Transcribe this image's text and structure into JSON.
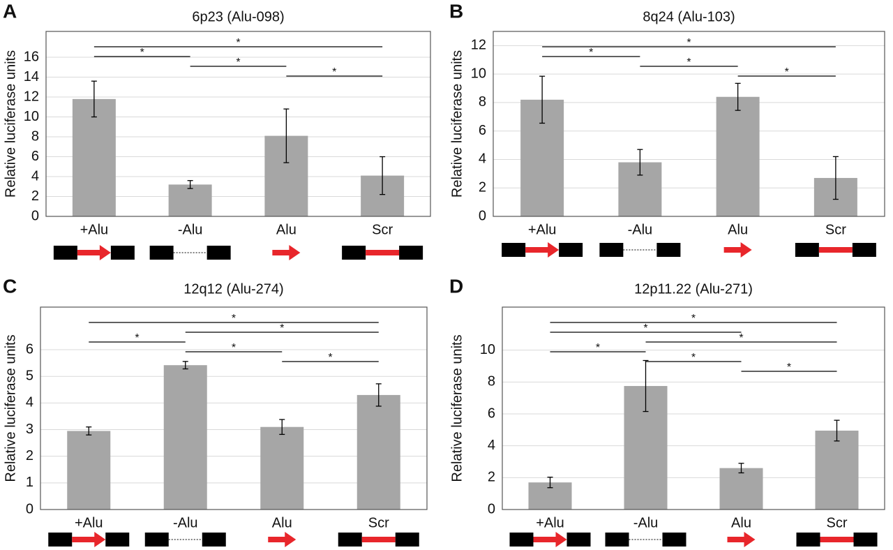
{
  "chart_data": [
    {
      "type": "bar",
      "panel": "A",
      "title": "6p23 (Alu-098)",
      "ylabel": "Relative luciferase units",
      "categories": [
        "+Alu",
        "-Alu",
        "Alu",
        "Scr"
      ],
      "values": [
        11.8,
        3.2,
        8.1,
        4.1
      ],
      "errors": [
        1.8,
        0.4,
        2.7,
        1.9
      ],
      "color": "#a6a6a6",
      "ylim": [
        0,
        18.6
      ],
      "yticks": [
        0,
        2,
        4,
        6,
        8,
        10,
        12,
        14,
        16
      ],
      "grid": true,
      "comparisons": [
        {
          "pair": [
            "+Alu",
            "Scr"
          ],
          "label": "*"
        },
        {
          "pair": [
            "+Alu",
            "-Alu"
          ],
          "label": "*"
        },
        {
          "pair": [
            "-Alu",
            "Alu"
          ],
          "label": "*"
        },
        {
          "pair": [
            "Alu",
            "Scr"
          ],
          "label": "*"
        }
      ]
    },
    {
      "type": "bar",
      "panel": "B",
      "title": "8q24 (Alu-103)",
      "ylabel": "Relative luciferase units",
      "categories": [
        "+Alu",
        "-Alu",
        "Alu",
        "Scr"
      ],
      "values": [
        8.2,
        3.8,
        8.4,
        2.7
      ],
      "errors": [
        1.65,
        0.9,
        0.95,
        1.5
      ],
      "color": "#a6a6a6",
      "ylim": [
        0,
        13
      ],
      "yticks": [
        0,
        2,
        4,
        6,
        8,
        10,
        12
      ],
      "grid": true,
      "comparisons": [
        {
          "pair": [
            "+Alu",
            "Scr"
          ],
          "label": "*"
        },
        {
          "pair": [
            "+Alu",
            "-Alu"
          ],
          "label": "*"
        },
        {
          "pair": [
            "-Alu",
            "Alu"
          ],
          "label": "*"
        },
        {
          "pair": [
            "Alu",
            "Scr"
          ],
          "label": "*"
        }
      ]
    },
    {
      "type": "bar",
      "panel": "C",
      "title": "12q12 (Alu-274)",
      "ylabel": "Relative luciferase units",
      "categories": [
        "+Alu",
        "-Alu",
        "Alu",
        "Scr"
      ],
      "values": [
        2.95,
        5.42,
        3.1,
        4.3
      ],
      "errors": [
        0.15,
        0.14,
        0.28,
        0.42
      ],
      "color": "#a6a6a6",
      "ylim": [
        0,
        7.6
      ],
      "yticks": [
        0,
        1,
        2,
        3,
        4,
        5,
        6
      ],
      "grid": true,
      "comparisons": [
        {
          "pair": [
            "+Alu",
            "Scr"
          ],
          "label": "*"
        },
        {
          "pair": [
            "-Alu",
            "Scr"
          ],
          "label": "*"
        },
        {
          "pair": [
            "+Alu",
            "-Alu"
          ],
          "label": "*"
        },
        {
          "pair": [
            "-Alu",
            "Alu"
          ],
          "label": "*"
        },
        {
          "pair": [
            "Alu",
            "Scr"
          ],
          "label": "*"
        }
      ]
    },
    {
      "type": "bar",
      "panel": "D",
      "title": "12p11.22 (Alu-271)",
      "ylabel": "Relative luciferase units",
      "categories": [
        "+Alu",
        "-Alu",
        "Alu",
        "Scr"
      ],
      "values": [
        1.7,
        7.75,
        2.6,
        4.95
      ],
      "errors": [
        0.33,
        1.6,
        0.3,
        0.65
      ],
      "color": "#a6a6a6",
      "ylim": [
        0,
        12.7
      ],
      "yticks": [
        0,
        2,
        4,
        6,
        8,
        10
      ],
      "grid": true,
      "comparisons": [
        {
          "pair": [
            "+Alu",
            "Scr"
          ],
          "label": "*"
        },
        {
          "pair": [
            "+Alu",
            "Alu"
          ],
          "label": "*"
        },
        {
          "pair": [
            "-Alu",
            "Scr"
          ],
          "label": "*"
        },
        {
          "pair": [
            "+Alu",
            "-Alu"
          ],
          "label": "*"
        },
        {
          "pair": [
            "-Alu",
            "Alu"
          ],
          "label": "*"
        },
        {
          "pair": [
            "Alu",
            "Scr"
          ],
          "label": "*"
        }
      ]
    }
  ]
}
